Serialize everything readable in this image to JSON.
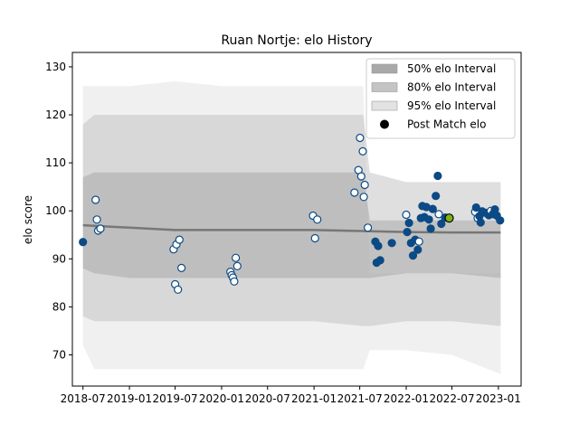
{
  "chart_data": {
    "type": "scatter",
    "title": "Ruan Nortje: elo History",
    "xlabel": "",
    "ylabel": "elo score",
    "xlim": [
      "2018-05-20",
      "2023-04-01"
    ],
    "ylim": [
      63.5,
      133
    ],
    "x_tick_labels": [
      "2018-07",
      "2019-01",
      "2019-07",
      "2020-01",
      "2020-07",
      "2021-01",
      "2021-07",
      "2022-01",
      "2022-07",
      "2023-01"
    ],
    "x_ticks": [
      "2018-07-01",
      "2019-01-01",
      "2019-07-01",
      "2020-01-01",
      "2020-07-01",
      "2021-01-01",
      "2021-07-01",
      "2022-01-01",
      "2022-07-01",
      "2023-01-01"
    ],
    "y_ticks": [
      70,
      80,
      90,
      100,
      110,
      120,
      130
    ],
    "legend": {
      "position": "top-right",
      "entries": [
        {
          "label": "50% elo Interval",
          "color": "#a9a9a9"
        },
        {
          "label": "80% elo Interval",
          "color": "#c4c4c4"
        },
        {
          "label": "95% elo Interval",
          "color": "#e3e3e3"
        },
        {
          "label": "Post Match elo",
          "color": "#000000"
        }
      ]
    },
    "colors": {
      "point_fill": "#0c4a86",
      "point_fill_hollow": "#ffffff",
      "point_edge": "#0c4a86",
      "highlight": "#7ab316",
      "line": "#777777"
    },
    "intervals": {
      "x": [
        "2018-07-01",
        "2018-08-15",
        "2019-01-01",
        "2019-07-01",
        "2020-01-01",
        "2020-07-01",
        "2021-01-01",
        "2021-07-15",
        "2021-08-10",
        "2022-01-01",
        "2022-07-01",
        "2023-01-10"
      ],
      "p95_upper": [
        126,
        126,
        126,
        127,
        126,
        126,
        126,
        126,
        87,
        87,
        87,
        87
      ],
      "p95_lower": [
        72,
        67,
        67,
        67,
        67,
        67,
        67,
        67,
        71,
        71,
        70,
        66
      ],
      "p80_upper": [
        118,
        120,
        120,
        120,
        120,
        120,
        120,
        120,
        108,
        106,
        106,
        106
      ],
      "p80_lower": [
        78,
        77,
        77,
        77,
        77,
        77,
        77,
        76,
        76,
        77,
        77,
        76
      ],
      "p50_upper": [
        107,
        108,
        108,
        108,
        108,
        108,
        108,
        108,
        98,
        98,
        98,
        98
      ],
      "p50_lower": [
        88,
        87,
        86,
        86,
        86,
        86,
        86,
        86,
        86,
        87,
        87,
        86
      ]
    },
    "mean_line": {
      "x": [
        "2018-07-01",
        "2019-01-01",
        "2019-07-01",
        "2020-01-01",
        "2020-07-01",
        "2021-01-01",
        "2021-07-01",
        "2022-01-01",
        "2022-07-01",
        "2023-01-10"
      ],
      "y": [
        97,
        96.5,
        96,
        96,
        96,
        96,
        95.8,
        95.6,
        95.5,
        95.5
      ]
    },
    "series": [
      {
        "name": "Post Match elo",
        "points": [
          {
            "x": "2018-07-01",
            "y": 93.5,
            "hollow": false
          },
          {
            "x": "2018-08-20",
            "y": 102.3,
            "hollow": true
          },
          {
            "x": "2018-08-25",
            "y": 98.2,
            "hollow": true
          },
          {
            "x": "2018-08-30",
            "y": 95.9,
            "hollow": true
          },
          {
            "x": "2018-09-08",
            "y": 96.3,
            "hollow": true
          },
          {
            "x": "2019-06-25",
            "y": 92.0,
            "hollow": true
          },
          {
            "x": "2019-07-01",
            "y": 84.7,
            "hollow": true
          },
          {
            "x": "2019-07-06",
            "y": 93.0,
            "hollow": true
          },
          {
            "x": "2019-07-12",
            "y": 83.6,
            "hollow": true
          },
          {
            "x": "2019-07-18",
            "y": 94.0,
            "hollow": true
          },
          {
            "x": "2019-07-26",
            "y": 88.1,
            "hollow": true
          },
          {
            "x": "2020-02-05",
            "y": 87.3,
            "hollow": true
          },
          {
            "x": "2020-02-10",
            "y": 86.6,
            "hollow": true
          },
          {
            "x": "2020-02-15",
            "y": 86.1,
            "hollow": true
          },
          {
            "x": "2020-02-20",
            "y": 85.3,
            "hollow": true
          },
          {
            "x": "2020-02-26",
            "y": 90.2,
            "hollow": true
          },
          {
            "x": "2020-03-03",
            "y": 88.5,
            "hollow": true
          },
          {
            "x": "2020-12-28",
            "y": 99.0,
            "hollow": true
          },
          {
            "x": "2021-01-05",
            "y": 94.3,
            "hollow": true
          },
          {
            "x": "2021-01-14",
            "y": 98.2,
            "hollow": true
          },
          {
            "x": "2021-06-10",
            "y": 103.8,
            "hollow": true
          },
          {
            "x": "2021-06-26",
            "y": 108.5,
            "hollow": true
          },
          {
            "x": "2021-07-02",
            "y": 115.2,
            "hollow": true
          },
          {
            "x": "2021-07-07",
            "y": 107.2,
            "hollow": true
          },
          {
            "x": "2021-07-13",
            "y": 112.4,
            "hollow": true
          },
          {
            "x": "2021-07-17",
            "y": 102.9,
            "hollow": true
          },
          {
            "x": "2021-07-21",
            "y": 105.4,
            "hollow": true
          },
          {
            "x": "2021-08-02",
            "y": 96.5,
            "hollow": true
          },
          {
            "x": "2021-09-01",
            "y": 93.6,
            "hollow": false
          },
          {
            "x": "2021-09-06",
            "y": 89.2,
            "hollow": false
          },
          {
            "x": "2021-09-12",
            "y": 92.7,
            "hollow": false
          },
          {
            "x": "2021-09-20",
            "y": 89.7,
            "hollow": false
          },
          {
            "x": "2021-11-05",
            "y": 93.3,
            "hollow": false
          },
          {
            "x": "2022-01-01",
            "y": 99.2,
            "hollow": true
          },
          {
            "x": "2022-01-05",
            "y": 95.6,
            "hollow": false
          },
          {
            "x": "2022-01-12",
            "y": 97.5,
            "hollow": false
          },
          {
            "x": "2022-01-20",
            "y": 93.3,
            "hollow": false
          },
          {
            "x": "2022-01-28",
            "y": 90.7,
            "hollow": false
          },
          {
            "x": "2022-02-06",
            "y": 94.0,
            "hollow": false
          },
          {
            "x": "2022-02-16",
            "y": 91.9,
            "hollow": false
          },
          {
            "x": "2022-02-21",
            "y": 93.6,
            "hollow": true
          },
          {
            "x": "2022-02-28",
            "y": 98.5,
            "hollow": false
          },
          {
            "x": "2022-03-06",
            "y": 101.0,
            "hollow": false
          },
          {
            "x": "2022-03-14",
            "y": 98.7,
            "hollow": false
          },
          {
            "x": "2022-03-22",
            "y": 100.8,
            "hollow": false
          },
          {
            "x": "2022-04-01",
            "y": 98.2,
            "hollow": false
          },
          {
            "x": "2022-04-08",
            "y": 96.3,
            "hollow": false
          },
          {
            "x": "2022-04-16",
            "y": 100.4,
            "hollow": false
          },
          {
            "x": "2022-04-28",
            "y": 103.1,
            "hollow": false
          },
          {
            "x": "2022-05-06",
            "y": 107.3,
            "hollow": false
          },
          {
            "x": "2022-05-10",
            "y": 99.3,
            "hollow": true
          },
          {
            "x": "2022-05-20",
            "y": 97.3,
            "hollow": false
          },
          {
            "x": "2022-06-04",
            "y": 98.6,
            "hollow": false
          },
          {
            "x": "2022-10-01",
            "y": 99.8,
            "hollow": true
          },
          {
            "x": "2022-10-05",
            "y": 100.7,
            "hollow": false
          },
          {
            "x": "2022-10-11",
            "y": 98.5,
            "hollow": true
          },
          {
            "x": "2022-10-18",
            "y": 98.9,
            "hollow": false
          },
          {
            "x": "2022-10-23",
            "y": 97.6,
            "hollow": false
          },
          {
            "x": "2022-10-29",
            "y": 99.9,
            "hollow": false
          },
          {
            "x": "2022-11-10",
            "y": 99.6,
            "hollow": false
          },
          {
            "x": "2022-11-24",
            "y": 99.1,
            "hollow": false
          },
          {
            "x": "2022-12-02",
            "y": 100.0,
            "hollow": true
          },
          {
            "x": "2022-12-10",
            "y": 99.3,
            "hollow": false
          },
          {
            "x": "2022-12-18",
            "y": 100.3,
            "hollow": false
          },
          {
            "x": "2022-12-26",
            "y": 99.0,
            "hollow": false
          },
          {
            "x": "2023-01-08",
            "y": 98.0,
            "hollow": false
          }
        ]
      }
    ],
    "highlight_point": {
      "x": "2022-06-20",
      "y": 98.5
    }
  }
}
